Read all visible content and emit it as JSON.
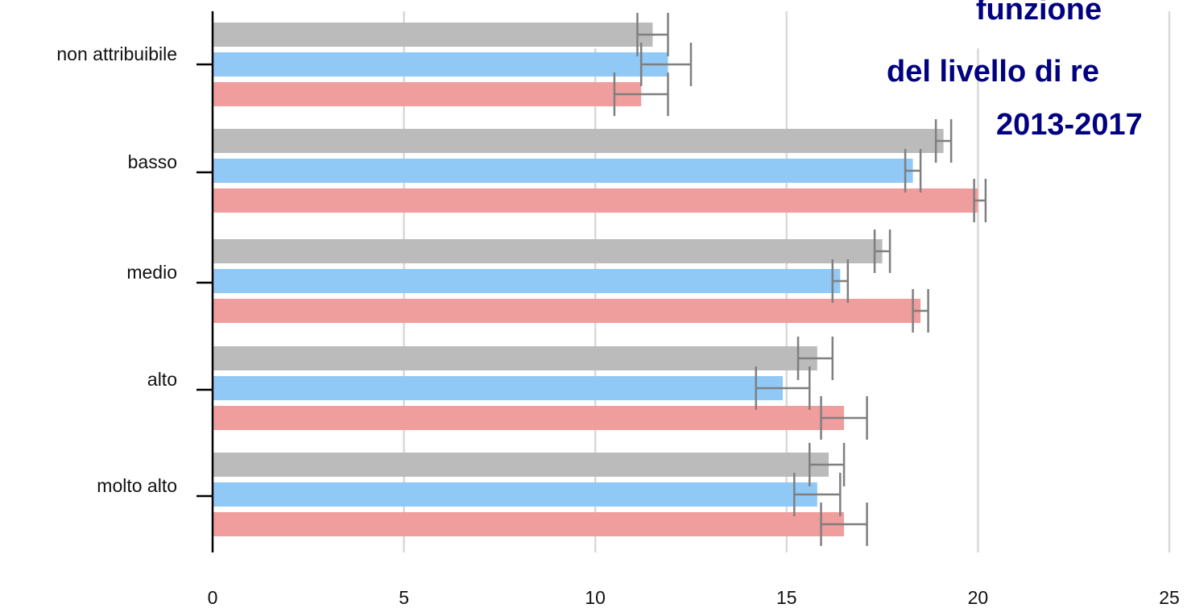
{
  "chart_data": {
    "type": "bar",
    "orientation": "horizontal",
    "title_lines": [
      "funzione",
      "del livello di re",
      "2013-2017"
    ],
    "categories": [
      "non attribuibile",
      "basso",
      "medio",
      "alto",
      "molto alto"
    ],
    "x_ticks": [
      0,
      5,
      10,
      15,
      20,
      25
    ],
    "xlim": [
      0,
      25
    ],
    "grid": true,
    "series": [
      {
        "color": "#bbbbbb",
        "values": [
          11.5,
          19.1,
          17.5,
          15.8,
          16.1
        ],
        "ci_low": [
          11.1,
          18.9,
          17.3,
          15.3,
          15.6
        ],
        "ci_high": [
          11.9,
          19.3,
          17.7,
          16.2,
          16.5
        ]
      },
      {
        "color": "#90c9f6",
        "values": [
          11.9,
          18.3,
          16.4,
          14.9,
          15.8
        ],
        "ci_low": [
          11.2,
          18.1,
          16.2,
          14.2,
          15.2
        ],
        "ci_high": [
          12.5,
          18.5,
          16.6,
          15.6,
          16.4
        ]
      },
      {
        "color": "#f09d9d",
        "values": [
          11.2,
          20.0,
          18.5,
          16.5,
          16.5
        ],
        "ci_low": [
          10.5,
          19.9,
          18.3,
          15.9,
          15.9
        ],
        "ci_high": [
          11.9,
          20.2,
          18.7,
          17.1,
          17.1
        ]
      }
    ]
  }
}
